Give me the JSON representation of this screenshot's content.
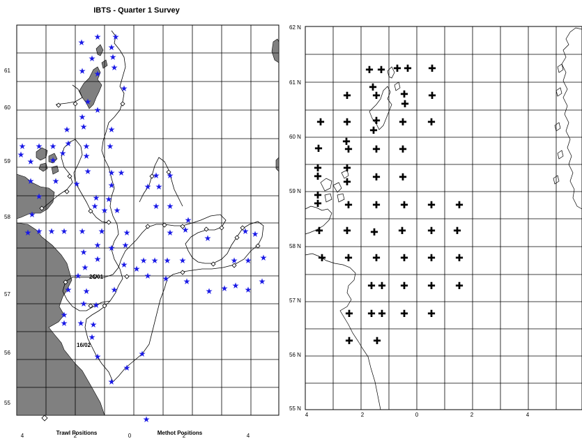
{
  "title": "IBTS - Quarter 1 Survey",
  "left_map": {
    "lat_labels": [
      "61",
      "60",
      "59",
      "58",
      "57",
      "56",
      "55"
    ],
    "lon_labels": [
      "4",
      "2",
      "0",
      "2",
      "4"
    ],
    "legend": {
      "trawl": "Trawl Positions",
      "methot": "Methot Positions"
    },
    "date_annotations": [
      "26/01",
      "16/02"
    ],
    "land_color": "#808080",
    "star_color": "#1a1ae6"
  },
  "right_map": {
    "lat_labels": [
      "62 N",
      "61 N",
      "60 N",
      "59 N",
      "58 N",
      "57 N",
      "56 N",
      "55 N"
    ],
    "lon_labels": [
      "4",
      "2",
      "0",
      "2",
      "4"
    ]
  }
}
